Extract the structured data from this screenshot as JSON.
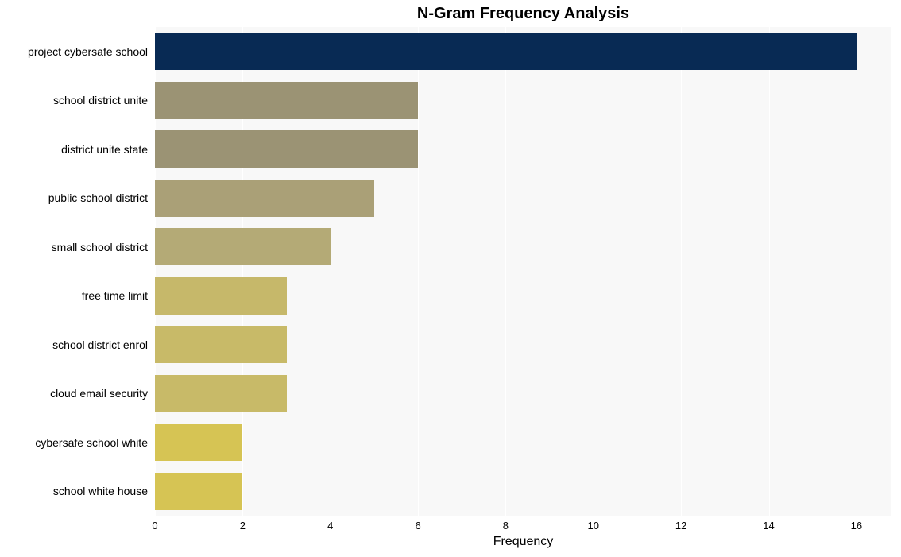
{
  "chart": {
    "type": "bar-horizontal",
    "title": "N-Gram Frequency Analysis",
    "title_fontsize": 20,
    "xlabel": "Frequency",
    "label_fontsize": 16,
    "ylabel_fontsize": 14,
    "tick_fontsize": 13,
    "background_color": "#ffffff",
    "plot_bg_color": "#f8f8f8",
    "grid_color": "#ffffff",
    "x_min": 0,
    "x_max": 16.8,
    "x_ticks": [
      0,
      2,
      4,
      6,
      8,
      10,
      12,
      14,
      16
    ],
    "bar_rel_height": 0.77,
    "bars": [
      {
        "label": "project cybersafe school",
        "value": 16,
        "color": "#082a54"
      },
      {
        "label": "school district unite",
        "value": 6,
        "color": "#9b9374"
      },
      {
        "label": "district unite state",
        "value": 6,
        "color": "#9b9374"
      },
      {
        "label": "public school district",
        "value": 5,
        "color": "#aaa077"
      },
      {
        "label": "small school district",
        "value": 4,
        "color": "#b4aa76"
      },
      {
        "label": "free time limit",
        "value": 3,
        "color": "#c6b86a"
      },
      {
        "label": "school district enrol",
        "value": 3,
        "color": "#c8ba68"
      },
      {
        "label": "cloud email security",
        "value": 3,
        "color": "#c8ba68"
      },
      {
        "label": "cybersafe school white",
        "value": 2,
        "color": "#d6c454"
      },
      {
        "label": "school white house",
        "value": 2,
        "color": "#d6c454"
      }
    ]
  }
}
